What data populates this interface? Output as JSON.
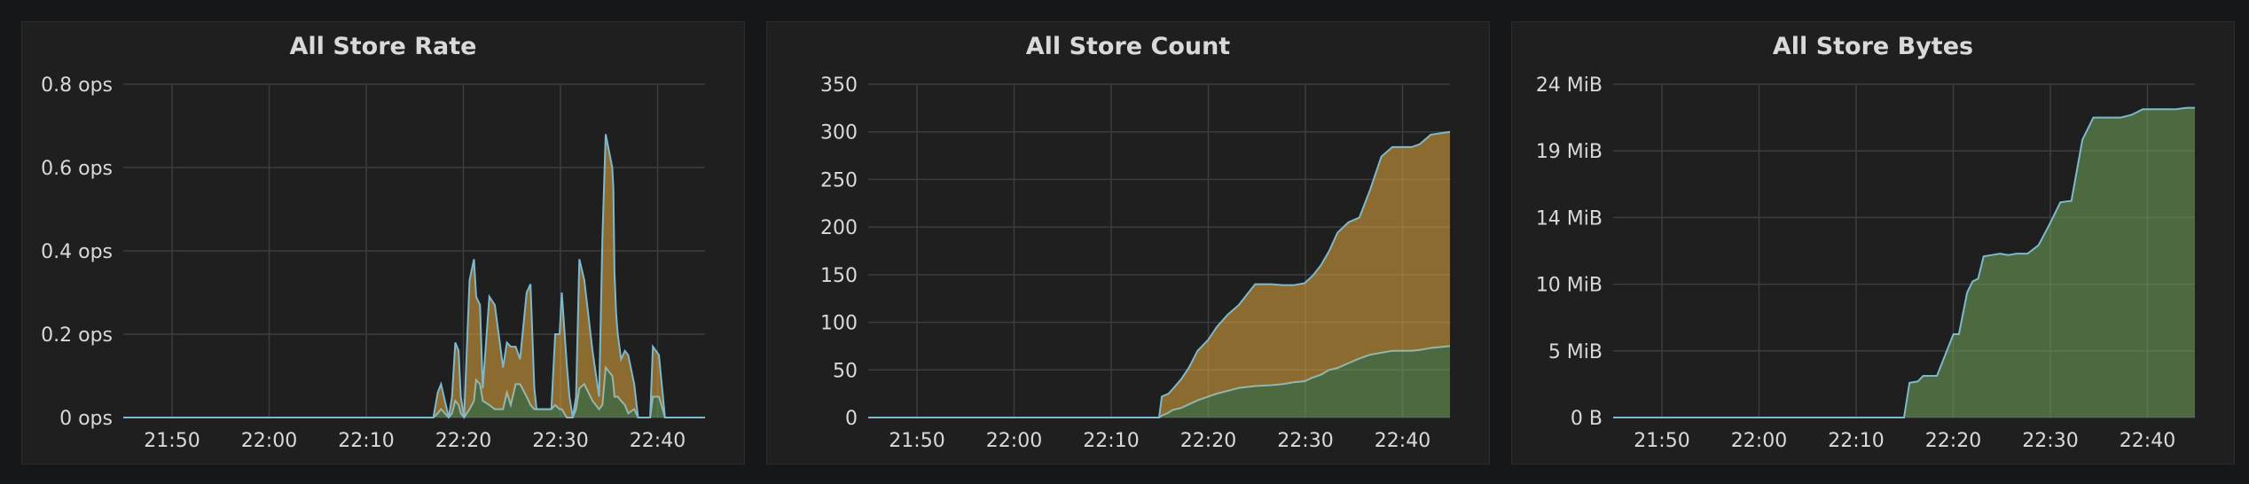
{
  "panels": [
    {
      "title": "All Store Rate"
    },
    {
      "title": "All Store Count"
    },
    {
      "title": "All Store Bytes"
    }
  ],
  "colors": {
    "background": "#161719",
    "panel": "#1f1f20",
    "line": "#7eb8ce",
    "orange_fill": "#e5a93f",
    "green_fill": "#73a55b",
    "grid": "#3d3d3f",
    "text": "#d8d9da"
  },
  "chart_data": [
    {
      "type": "area",
      "stacked": true,
      "title": "All Store Rate",
      "xlabel": "",
      "ylabel": "",
      "grid": true,
      "x_ticks": [
        "21:50",
        "22:00",
        "22:10",
        "22:20",
        "22:30",
        "22:40"
      ],
      "xlim": [
        1545,
        2605
      ],
      "y_ticks": [
        "0 ops",
        "0.2 ops",
        "0.4 ops",
        "0.6 ops",
        "0.8 ops"
      ],
      "ylim": [
        0,
        0.8
      ],
      "series": [
        {
          "fill": "green",
          "x": [
            1545,
            2068,
            2071,
            2075,
            2087,
            2093,
            2110,
            2118,
            2124,
            2131,
            2138,
            2144,
            2150,
            2156,
            2160,
            2166,
            2176,
            2184,
            2188,
            2195,
            2200,
            2212,
            2222,
            2237,
            2244,
            2251,
            2260,
            2268,
            2280,
            2287,
            2294,
            2298,
            2306,
            2313,
            2325,
            2332,
            2340,
            2344,
            2353,
            2358,
            2364,
            2370,
            2376,
            2385,
            2400,
            2412,
            2418,
            2424,
            2436,
            2438,
            2440,
            2443,
            2446,
            2452,
            2459,
            2465,
            2476,
            2483,
            2490,
            2496,
            2505,
            2510,
            2521,
            2532,
            2605
          ],
          "y": [
            0,
            0,
            0,
            0,
            0,
            0,
            0,
            0.01,
            0.02,
            0.01,
            0,
            0.01,
            0.04,
            0.03,
            0.01,
            0,
            0.02,
            0.04,
            0.09,
            0.08,
            0.04,
            0.03,
            0.02,
            0.02,
            0.06,
            0.03,
            0.08,
            0.08,
            0.05,
            0.03,
            0.02,
            0.02,
            0.02,
            0.02,
            0.02,
            0.03,
            0.02,
            0.02,
            0,
            0,
            0,
            0.02,
            0.07,
            0.08,
            0.04,
            0.02,
            0.03,
            0.12,
            0.1,
            0.08,
            0.05,
            0.05,
            0.05,
            0.04,
            0.03,
            0.01,
            0.02,
            0,
            0,
            0,
            0,
            0.05,
            0.05,
            0,
            0
          ]
        },
        {
          "fill": "orange",
          "x": [
            1545,
            2068,
            2071,
            2075,
            2087,
            2093,
            2110,
            2118,
            2124,
            2131,
            2138,
            2144,
            2150,
            2156,
            2160,
            2166,
            2176,
            2184,
            2188,
            2195,
            2200,
            2212,
            2222,
            2237,
            2244,
            2251,
            2260,
            2268,
            2280,
            2287,
            2294,
            2298,
            2306,
            2313,
            2325,
            2332,
            2340,
            2344,
            2353,
            2358,
            2364,
            2370,
            2376,
            2385,
            2400,
            2412,
            2418,
            2424,
            2436,
            2438,
            2440,
            2443,
            2446,
            2452,
            2459,
            2465,
            2476,
            2483,
            2490,
            2496,
            2505,
            2510,
            2521,
            2532,
            2605
          ],
          "y": [
            0,
            0,
            0,
            0,
            0,
            0,
            0,
            0.05,
            0.06,
            0.03,
            0,
            0.04,
            0.14,
            0.13,
            0.04,
            0,
            0.31,
            0.34,
            0.2,
            0.19,
            0.03,
            0.26,
            0.25,
            0.1,
            0.12,
            0.14,
            0.09,
            0.06,
            0.25,
            0.29,
            0.05,
            0,
            0,
            0,
            0,
            0.17,
            0.18,
            0.28,
            0.13,
            0.05,
            0,
            0.03,
            0.31,
            0.25,
            0.12,
            0.03,
            0.4,
            0.56,
            0.5,
            0.47,
            0.3,
            0.2,
            0.15,
            0.1,
            0.13,
            0.14,
            0.06,
            0,
            0,
            0,
            0,
            0.12,
            0.1,
            0,
            0
          ]
        }
      ]
    },
    {
      "type": "area",
      "stacked": true,
      "title": "All Store Count",
      "xlabel": "",
      "ylabel": "",
      "grid": true,
      "x_ticks": [
        "21:50",
        "22:00",
        "22:10",
        "22:20",
        "22:30",
        "22:40"
      ],
      "xlim": [
        1545,
        2605
      ],
      "y_ticks": [
        "0",
        "50",
        "100",
        "150",
        "200",
        "250",
        "300",
        "350"
      ],
      "ylim": [
        0,
        350
      ],
      "series": [
        {
          "fill": "green",
          "x": [
            1545,
            2068,
            2075,
            2080,
            2092,
            2100,
            2115,
            2130,
            2145,
            2165,
            2180,
            2200,
            2220,
            2250,
            2280,
            2300,
            2320,
            2340,
            2355,
            2370,
            2385,
            2400,
            2420,
            2440,
            2460,
            2480,
            2500,
            2520,
            2535,
            2550,
            2570,
            2605
          ],
          "y": [
            0,
            0,
            0,
            2,
            5,
            8,
            10,
            14,
            18,
            22,
            25,
            28,
            31,
            33,
            34,
            35,
            37,
            38,
            42,
            45,
            50,
            52,
            57,
            62,
            66,
            68,
            70,
            70,
            70,
            71,
            73,
            75
          ]
        },
        {
          "fill": "orange",
          "x": [
            1545,
            2068,
            2075,
            2080,
            2092,
            2100,
            2115,
            2130,
            2145,
            2165,
            2180,
            2200,
            2220,
            2250,
            2280,
            2300,
            2320,
            2340,
            2355,
            2370,
            2385,
            2400,
            2420,
            2440,
            2460,
            2480,
            2500,
            2520,
            2535,
            2550,
            2570,
            2605
          ],
          "y": [
            0,
            0,
            0,
            20,
            20,
            22,
            30,
            39,
            52,
            60,
            70,
            80,
            87,
            107,
            106,
            104,
            102,
            103,
            107,
            115,
            125,
            142,
            148,
            148,
            174,
            206,
            214,
            214,
            214,
            216,
            224,
            225
          ]
        }
      ]
    },
    {
      "type": "area",
      "stacked": false,
      "title": "All Store Bytes",
      "xlabel": "",
      "ylabel": "",
      "grid": true,
      "x_ticks": [
        "21:50",
        "22:00",
        "22:10",
        "22:20",
        "22:30",
        "22:40"
      ],
      "xlim": [
        1545,
        2605
      ],
      "y_ticks": [
        "0 B",
        "5 MiB",
        "10 MiB",
        "14 MiB",
        "19 MiB",
        "24 MiB"
      ],
      "y_tick_values": [
        0,
        4.8,
        9.6,
        14.4,
        19.2,
        24
      ],
      "ylim": [
        0,
        24
      ],
      "series": [
        {
          "fill": "green",
          "x": [
            1545,
            2068,
            2075,
            2085,
            2100,
            2110,
            2125,
            2135,
            2150,
            2165,
            2175,
            2190,
            2200,
            2210,
            2220,
            2235,
            2250,
            2265,
            2280,
            2300,
            2320,
            2340,
            2360,
            2380,
            2400,
            2420,
            2440,
            2455,
            2470,
            2490,
            2510,
            2530,
            2550,
            2570,
            2590,
            2605
          ],
          "y": [
            0,
            0,
            0,
            2.5,
            2.6,
            3,
            3,
            3,
            4.5,
            6,
            6,
            9,
            9.8,
            10,
            11.6,
            11.7,
            11.8,
            11.7,
            11.8,
            11.8,
            12.4,
            13.9,
            15.5,
            15.6,
            20,
            21.6,
            21.6,
            21.6,
            21.6,
            21.8,
            22.2,
            22.2,
            22.2,
            22.2,
            22.3,
            22.3
          ]
        }
      ]
    }
  ]
}
